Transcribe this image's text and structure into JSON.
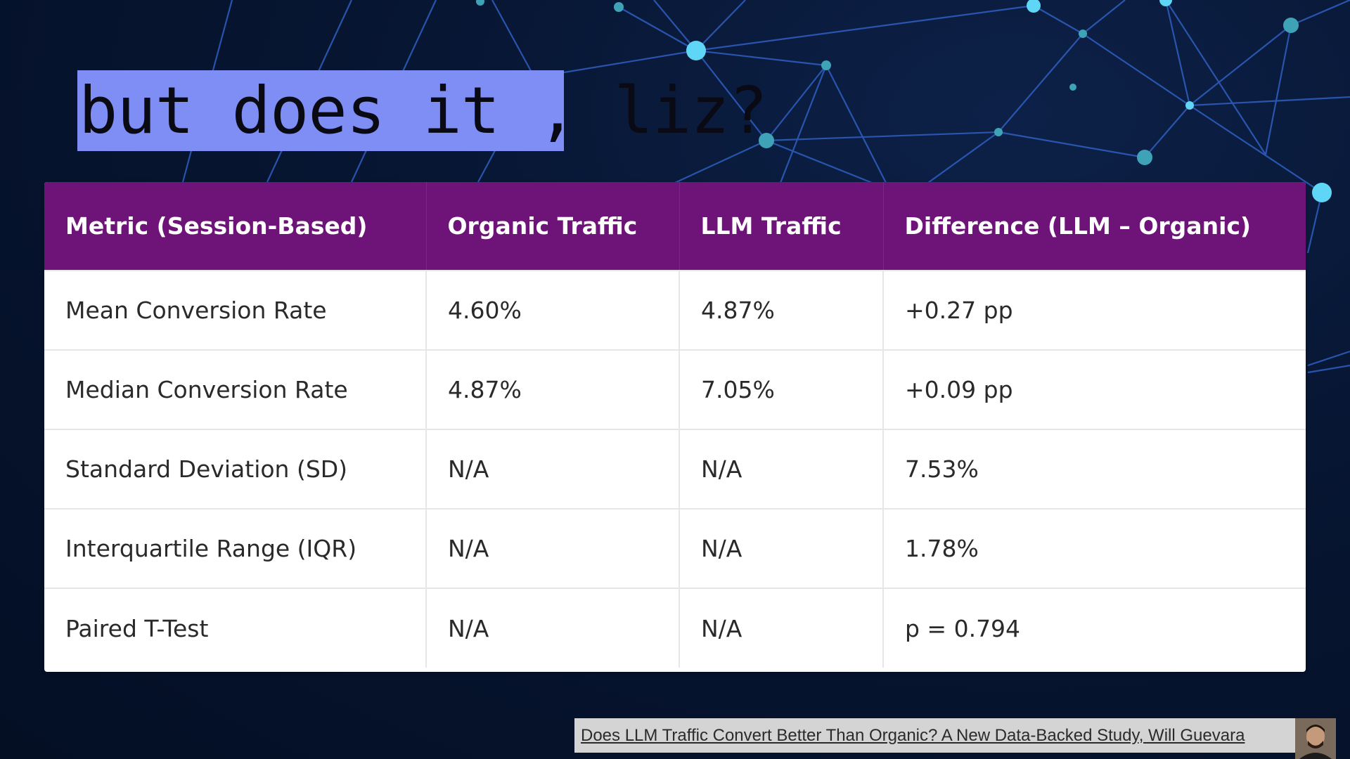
{
  "slide": {
    "title": "but does it , liz?",
    "highlight_color": "#7f8ef5",
    "background_color": "#06122a"
  },
  "table": {
    "header_color": "#6e1478",
    "headers": [
      "Metric (Session-Based)",
      "Organic Traffic",
      "LLM Traffic",
      "Difference (LLM – Organic)"
    ],
    "rows": [
      [
        "Mean Conversion Rate",
        "4.60%",
        "4.87%",
        "+0.27 pp"
      ],
      [
        "Median Conversion Rate",
        "4.87%",
        "7.05%",
        "+0.09 pp"
      ],
      [
        "Standard Deviation (SD)",
        "N/A",
        "N/A",
        "7.53%"
      ],
      [
        "Interquartile Range (IQR)",
        "N/A",
        "N/A",
        "1.78%"
      ],
      [
        "Paired T-Test",
        "N/A",
        "N/A",
        "p = 0.794"
      ]
    ]
  },
  "source": {
    "link_text": "Does LLM Traffic Convert Better Than Organic? A New Data-Backed Study, Will Guevara"
  },
  "icons": {
    "background": "network-graph-icon",
    "presenter": "avatar-icon"
  }
}
